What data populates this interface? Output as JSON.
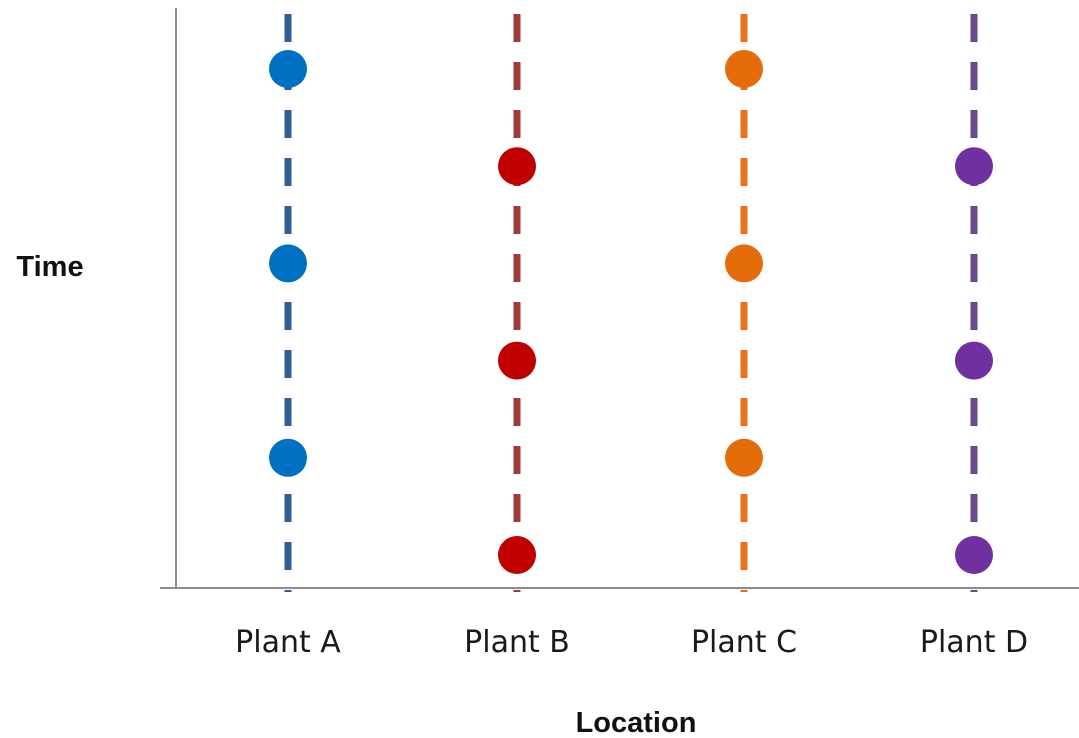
{
  "chart_data": {
    "type": "scatter",
    "xlabel": "Location",
    "ylabel": "Time",
    "categories": [
      "Plant A",
      "Plant B",
      "Plant C",
      "Plant D"
    ],
    "y_axis_ticks_shown": false,
    "grid": false,
    "legend": "none",
    "series": [
      {
        "category": "Plant A",
        "color": "#0070C0",
        "line_color": "#2E5E94",
        "line_style": "dashed",
        "points": [
          5,
          3,
          1
        ]
      },
      {
        "category": "Plant B",
        "color": "#C00000",
        "line_color": "#A33A3A",
        "line_style": "dashed",
        "points": [
          4,
          2,
          0
        ]
      },
      {
        "category": "Plant C",
        "color": "#E46C0A",
        "line_color": "#E8731A",
        "line_style": "dashed",
        "points": [
          5,
          3,
          1
        ]
      },
      {
        "category": "Plant D",
        "color": "#7030A0",
        "line_color": "#6A4A8A",
        "line_style": "dashed",
        "points": [
          4,
          2,
          0
        ]
      }
    ]
  }
}
